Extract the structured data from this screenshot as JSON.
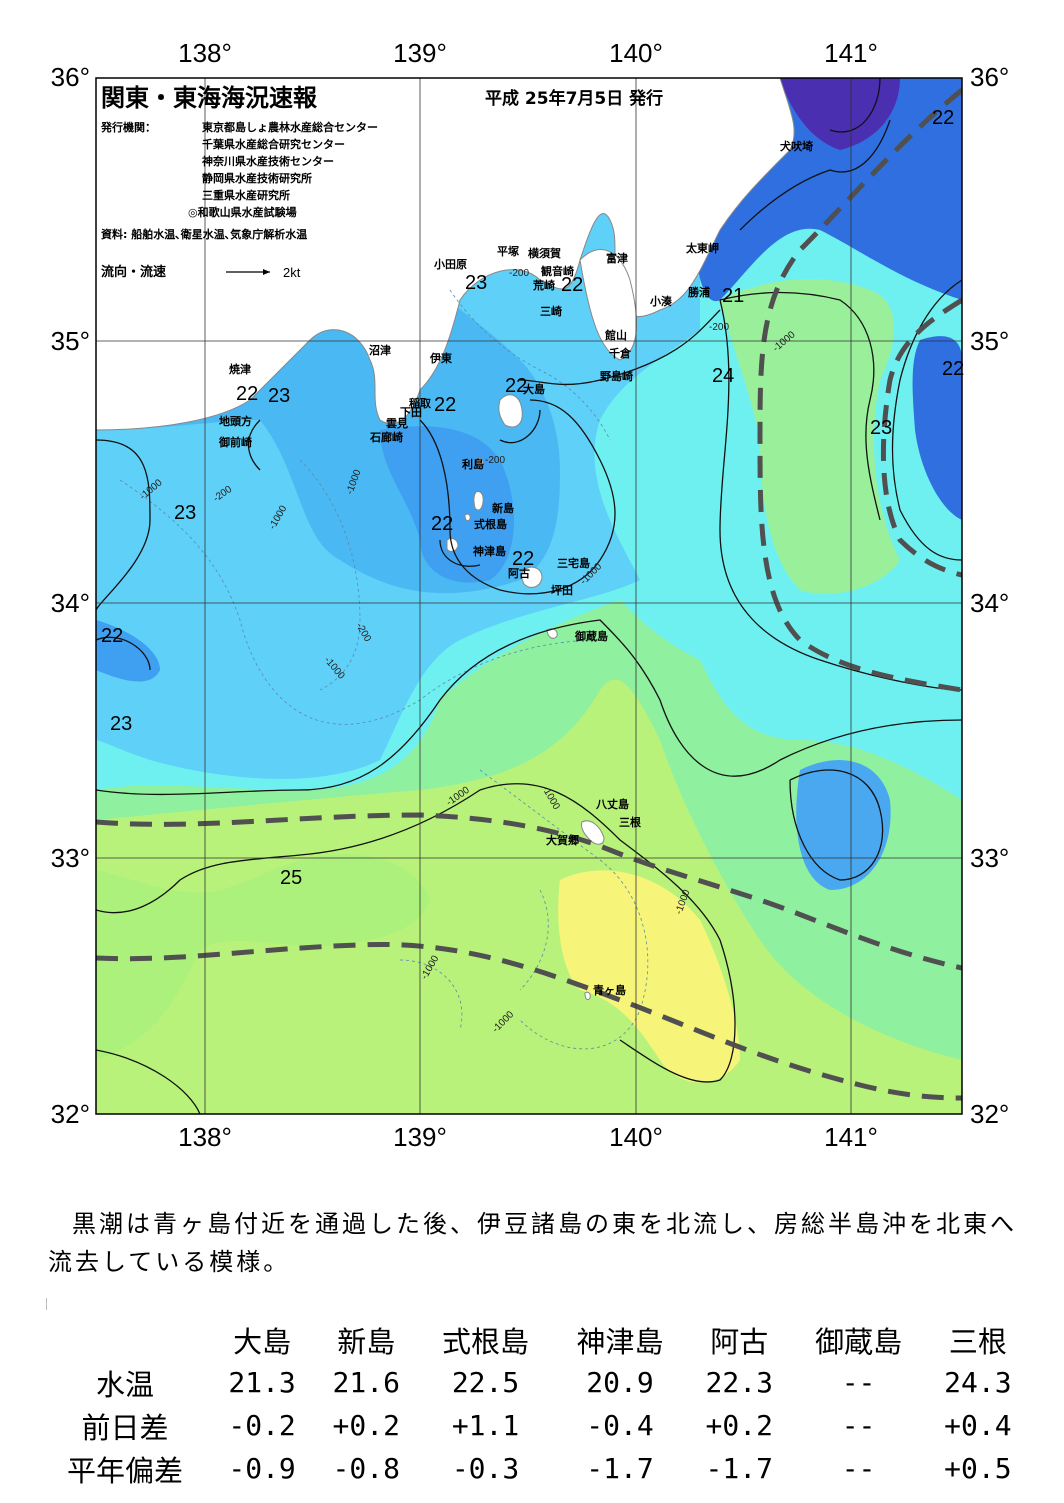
{
  "header": {
    "title": "関東・東海海況速報",
    "issue_date": "平成 25年7月5日 発行",
    "issuer_label": "発行機関：",
    "issuers": [
      "東京都島しょ農林水産総合センター",
      "千葉県水産総合研究センター",
      "神奈川県水産技術センター",
      "静岡県水産技術研究所",
      "三重県水産研究所",
      "◎和歌山県水産試験場"
    ],
    "source": "資料: 船舶水温､衛星水温､気象庁解析水温",
    "legend_label": "流向・流速",
    "legend_scale": "2kt"
  },
  "axes": {
    "lon_labels": [
      "138°",
      "139°",
      "140°",
      "141°"
    ],
    "lat_labels": [
      "36°",
      "35°",
      "34°",
      "33°",
      "32°"
    ],
    "lon_range": [
      137.5,
      141.5
    ],
    "lat_range": [
      32.0,
      36.0
    ]
  },
  "places": [
    {
      "name": "犬吠埼"
    },
    {
      "name": "太東岬"
    },
    {
      "name": "勝浦"
    },
    {
      "name": "小湊"
    },
    {
      "name": "富津"
    },
    {
      "name": "横須賀"
    },
    {
      "name": "平塚"
    },
    {
      "name": "小田原"
    },
    {
      "name": "観音崎"
    },
    {
      "name": "荒崎"
    },
    {
      "name": "三崎"
    },
    {
      "name": "館山"
    },
    {
      "name": "千倉"
    },
    {
      "name": "野島崎"
    },
    {
      "name": "沼津"
    },
    {
      "name": "伊東"
    },
    {
      "name": "稲取"
    },
    {
      "name": "下田"
    },
    {
      "name": "雲見"
    },
    {
      "name": "石廊崎"
    },
    {
      "name": "焼津"
    },
    {
      "name": "地頭方"
    },
    {
      "name": "御前崎"
    },
    {
      "name": "大島"
    },
    {
      "name": "利島"
    },
    {
      "name": "新島"
    },
    {
      "name": "式根島"
    },
    {
      "name": "神津島"
    },
    {
      "name": "三宅島"
    },
    {
      "name": "阿古"
    },
    {
      "name": "坪田"
    },
    {
      "name": "御蔵島"
    },
    {
      "name": "八丈島"
    },
    {
      "name": "三根"
    },
    {
      "name": "大賀郷"
    },
    {
      "name": "青ヶ島"
    }
  ],
  "isotherm_labels": [
    "22",
    "22",
    "23",
    "22",
    "21",
    "24",
    "22",
    "23",
    "22",
    "23",
    "22",
    "22",
    "23",
    "22",
    "23",
    "25"
  ],
  "depth_labels": [
    "-200",
    "-200",
    "-1000",
    "-1000",
    "-200",
    "-1000",
    "-1000",
    "-200",
    "-1000",
    "-1000",
    "-200",
    "-1000",
    "-1000",
    "-1000",
    "-1000",
    "-1000"
  ],
  "colors": {
    "deep_purple": "#4a2fb0",
    "blue": "#2f6fe0",
    "mid_blue": "#3f9ff0",
    "light_blue": "#5fd0f8",
    "cyan": "#6ff0f0",
    "aqua_green": "#7ff5c8",
    "light_green": "#9af09a",
    "yellow_green": "#c8f47a",
    "yellow": "#f6f57a",
    "kuroshio_axis": "#505050"
  },
  "summary": "黒潮は青ヶ島付近を通過した後、伊豆諸島の東を北流し、房総半島沖を北東へ流去している模様。",
  "stats": {
    "columns": [
      "大島",
      "新島",
      "式根島",
      "神津島",
      "阿古",
      "御蔵島",
      "三根"
    ],
    "rows": [
      {
        "label": "水温",
        "values": [
          "21.3",
          "21.6",
          "22.5",
          "20.9",
          "22.3",
          "--",
          "24.3"
        ]
      },
      {
        "label": "前日差",
        "values": [
          "-0.2",
          "+0.2",
          "+1.1",
          "-0.4",
          "+0.2",
          "--",
          "+0.4"
        ]
      },
      {
        "label": "平年偏差",
        "values": [
          "-0.9",
          "-0.8",
          "-0.3",
          "-1.7",
          "-1.7",
          "--",
          "+0.5"
        ]
      }
    ]
  }
}
